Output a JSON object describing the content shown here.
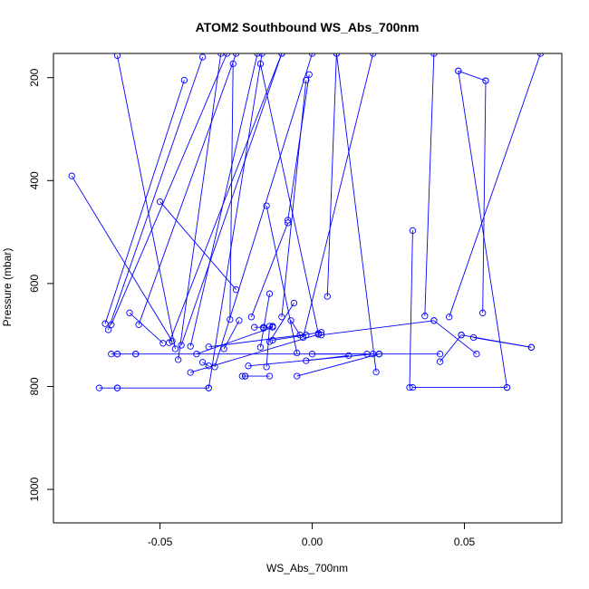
{
  "chart_data": {
    "type": "line",
    "title": "ATOM2 Southbound WS_Abs_700nm",
    "xlabel": "WS_Abs_700nm",
    "ylabel": "Pressure (mbar)",
    "xlim": [
      -0.085,
      0.082
    ],
    "ylim": [
      1065,
      153
    ],
    "y_reversed": true,
    "x_ticks": [
      -0.05,
      0.0,
      0.05
    ],
    "x_tick_labels": [
      "-0.05",
      "0.00",
      "0.05"
    ],
    "y_ticks": [
      200,
      400,
      600,
      800,
      1000
    ],
    "y_tick_labels": [
      "200",
      "400",
      "600",
      "800",
      "1000"
    ],
    "grid": false,
    "legend": "none",
    "color": "#0000ff",
    "marker": "open-circle",
    "series": [
      {
        "x": [
          -0.07,
          -0.064
        ],
        "y": [
          803,
          803
        ]
      },
      {
        "x": [
          -0.064,
          -0.034
        ],
        "y": [
          803,
          803
        ]
      },
      {
        "x": [
          -0.034,
          -0.0165
        ],
        "y": [
          803,
          153
        ]
      },
      {
        "x": [
          -0.079,
          -0.046
        ],
        "y": [
          391,
          712
        ]
      },
      {
        "x": [
          -0.068,
          -0.042
        ],
        "y": [
          678,
          205
        ]
      },
      {
        "x": [
          -0.067,
          -0.036
        ],
        "y": [
          690,
          160
        ]
      },
      {
        "x": [
          -0.066,
          -0.028
        ],
        "y": [
          680,
          153
        ]
      },
      {
        "x": [
          -0.066,
          -0.064
        ],
        "y": [
          737,
          737
        ]
      },
      {
        "x": [
          -0.064,
          -0.058
        ],
        "y": [
          737,
          737
        ]
      },
      {
        "x": [
          -0.058,
          0.022
        ],
        "y": [
          737,
          737
        ]
      },
      {
        "x": [
          -0.06,
          -0.049
        ],
        "y": [
          657,
          716
        ]
      },
      {
        "x": [
          -0.057,
          -0.025
        ],
        "y": [
          680,
          153
        ]
      },
      {
        "x": [
          -0.05,
          -0.025
        ],
        "y": [
          441,
          612
        ]
      },
      {
        "x": [
          -0.047,
          -0.01
        ],
        "y": [
          715,
          153
        ]
      },
      {
        "x": [
          -0.045,
          -0.064
        ],
        "y": [
          727,
          157
        ]
      },
      {
        "x": [
          -0.044,
          -0.03
        ],
        "y": [
          748,
          153
        ]
      },
      {
        "x": [
          -0.043,
          -0.01
        ],
        "y": [
          720,
          153
        ]
      },
      {
        "x": [
          -0.04,
          -0.018
        ],
        "y": [
          722,
          153
        ]
      },
      {
        "x": [
          -0.04,
          0.002
        ],
        "y": [
          773,
          699
        ]
      },
      {
        "x": [
          -0.038,
          -0.013
        ],
        "y": [
          737,
          685
        ]
      },
      {
        "x": [
          -0.036,
          -0.034
        ],
        "y": [
          753,
          760
        ]
      },
      {
        "x": [
          -0.034,
          0.003
        ],
        "y": [
          723,
          695
        ]
      },
      {
        "x": [
          -0.032,
          0.0
        ],
        "y": [
          762,
          153
        ]
      },
      {
        "x": [
          -0.029,
          -0.024
        ],
        "y": [
          727,
          672
        ]
      },
      {
        "x": [
          -0.027,
          -0.026
        ],
        "y": [
          670,
          173
        ]
      },
      {
        "x": [
          -0.023,
          -0.022
        ],
        "y": [
          780,
          780
        ]
      },
      {
        "x": [
          -0.022,
          -0.014
        ],
        "y": [
          780,
          780
        ]
      },
      {
        "x": [
          -0.021,
          0.02
        ],
        "y": [
          760,
          737
        ]
      },
      {
        "x": [
          -0.02,
          -0.008
        ],
        "y": [
          665,
          482
        ]
      },
      {
        "x": [
          -0.019,
          -0.016
        ],
        "y": [
          685,
          685
        ]
      },
      {
        "x": [
          -0.017,
          -0.014
        ],
        "y": [
          724,
          620
        ]
      },
      {
        "x": [
          -0.016,
          -0.013
        ],
        "y": [
          687,
          683
        ]
      },
      {
        "x": [
          -0.015,
          -0.014
        ],
        "y": [
          762,
          683
        ]
      },
      {
        "x": [
          -0.015,
          -0.005
        ],
        "y": [
          449,
          735
        ]
      },
      {
        "x": [
          -0.014,
          -0.006
        ],
        "y": [
          713,
          638
        ]
      },
      {
        "x": [
          -0.013,
          -0.002
        ],
        "y": [
          710,
          700
        ]
      },
      {
        "x": [
          -0.01,
          -0.002
        ],
        "y": [
          665,
          205
        ]
      },
      {
        "x": [
          -0.008,
          -0.001
        ],
        "y": [
          477,
          194
        ]
      },
      {
        "x": [
          -0.007,
          -0.004
        ],
        "y": [
          672,
          700
        ]
      },
      {
        "x": [
          -0.005,
          0.022
        ],
        "y": [
          780,
          737
        ]
      },
      {
        "x": [
          -0.003,
          0.02
        ],
        "y": [
          705,
          153
        ]
      },
      {
        "x": [
          -0.002,
          0.012
        ],
        "y": [
          750,
          740
        ]
      },
      {
        "x": [
          0.002,
          -0.017
        ],
        "y": [
          697,
          173
        ]
      },
      {
        "x": [
          0.005,
          0.008
        ],
        "y": [
          625,
          153
        ]
      },
      {
        "x": [
          0.0,
          0.018
        ],
        "y": [
          737,
          737
        ]
      },
      {
        "x": [
          0.021,
          0.008
        ],
        "y": [
          772,
          153
        ]
      },
      {
        "x": [
          0.022,
          0.042
        ],
        "y": [
          737,
          737
        ]
      },
      {
        "x": [
          0.032,
          0.033
        ],
        "y": [
          802,
          497
        ]
      },
      {
        "x": [
          0.033,
          0.064
        ],
        "y": [
          802,
          802
        ]
      },
      {
        "x": [
          0.037,
          0.04
        ],
        "y": [
          663,
          153
        ]
      },
      {
        "x": [
          0.04,
          0.054
        ],
        "y": [
          672,
          737
        ]
      },
      {
        "x": [
          0.04,
          0.003
        ],
        "y": [
          672,
          700
        ]
      },
      {
        "x": [
          0.042,
          0.049
        ],
        "y": [
          752,
          700
        ]
      },
      {
        "x": [
          0.048,
          0.064
        ],
        "y": [
          187,
          802
        ]
      },
      {
        "x": [
          0.049,
          0.072
        ],
        "y": [
          700,
          724
        ]
      },
      {
        "x": [
          0.053,
          0.072
        ],
        "y": [
          705,
          724
        ]
      },
      {
        "x": [
          0.056,
          0.057
        ],
        "y": [
          657,
          206
        ]
      },
      {
        "x": [
          0.057,
          0.048
        ],
        "y": [
          206,
          187
        ]
      },
      {
        "x": [
          0.045,
          0.075
        ],
        "y": [
          665,
          153
        ]
      }
    ]
  }
}
